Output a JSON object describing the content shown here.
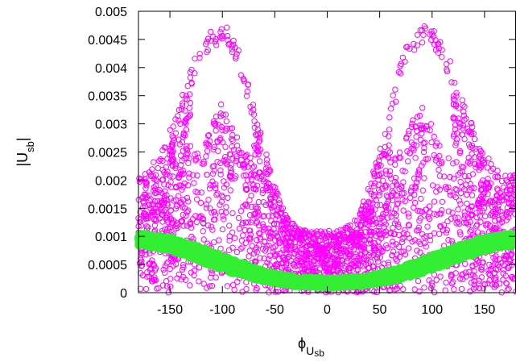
{
  "chart_data": {
    "type": "scatter",
    "xlabel": "ϕ",
    "xlabel_sub": "U",
    "xlabel_subsub": "sb",
    "ylabel": "|U",
    "ylabel_sub": "sb",
    "ylabel_end": "|",
    "xlim": [
      -180,
      180
    ],
    "ylim": [
      0,
      0.005
    ],
    "xticks": [
      -150,
      -100,
      -50,
      0,
      50,
      100,
      150
    ],
    "yticks": [
      0,
      0.0005,
      0.001,
      0.0015,
      0.002,
      0.0025,
      0.003,
      0.0035,
      0.004,
      0.0045,
      0.005
    ],
    "ytick_labels": [
      "0",
      "0.0005",
      "0.001",
      "0.0015",
      "0.002",
      "0.0025",
      "0.003",
      "0.0035",
      "0.004",
      "0.0045",
      "0.005"
    ],
    "grid": false,
    "legend": "none",
    "series": [
      {
        "color": "#ff00ff",
        "marker": "open-circle",
        "envelope": {
          "x": [
            -180,
            -170,
            -160,
            -150,
            -140,
            -130,
            -120,
            -110,
            -100,
            -90,
            -80,
            -70,
            -60,
            -50,
            -40,
            -30,
            -20,
            -10,
            0,
            10,
            20,
            30,
            40,
            50,
            60,
            70,
            80,
            90,
            100,
            110,
            120,
            130,
            140,
            150,
            160,
            170,
            180
          ],
          "y_max": [
            0.0021,
            0.0022,
            0.0025,
            0.0029,
            0.0034,
            0.004,
            0.0045,
            0.0047,
            0.0048,
            0.0046,
            0.0041,
            0.0033,
            0.0026,
            0.0019,
            0.0014,
            0.0012,
            0.0011,
            0.0011,
            0.0011,
            0.0011,
            0.0012,
            0.0014,
            0.0019,
            0.0026,
            0.0033,
            0.0041,
            0.0046,
            0.0048,
            0.0047,
            0.0045,
            0.004,
            0.0034,
            0.0029,
            0.0025,
            0.0022,
            0.0021,
            0.0021
          ],
          "hole_min": [
            null,
            null,
            null,
            null,
            null,
            null,
            0.0025,
            0.003,
            0.0034,
            0.003,
            0.0025,
            null,
            null,
            null,
            null,
            null,
            null,
            null,
            null,
            null,
            null,
            null,
            null,
            null,
            null,
            0.0025,
            0.003,
            0.0034,
            0.003,
            0.0025,
            null,
            null,
            null,
            null,
            null,
            null,
            null
          ],
          "y_min": 0
        },
        "point_count": 2600
      },
      {
        "color": "#33ee33",
        "marker": "filled-circle",
        "band": {
          "x": [
            -180,
            -150,
            -120,
            -90,
            -60,
            -30,
            0,
            30,
            60,
            90,
            120,
            150,
            180
          ],
          "y_low": [
            0.00085,
            0.00075,
            0.00055,
            0.00035,
            0.0002,
            0.00012,
            0.0001,
            0.00012,
            0.0002,
            0.00035,
            0.00055,
            0.00075,
            0.00085
          ],
          "y_high": [
            0.00105,
            0.00098,
            0.0008,
            0.00058,
            0.00038,
            0.00027,
            0.00025,
            0.00027,
            0.00038,
            0.00058,
            0.0008,
            0.00098,
            0.00105
          ]
        },
        "point_count": 2200
      }
    ]
  }
}
